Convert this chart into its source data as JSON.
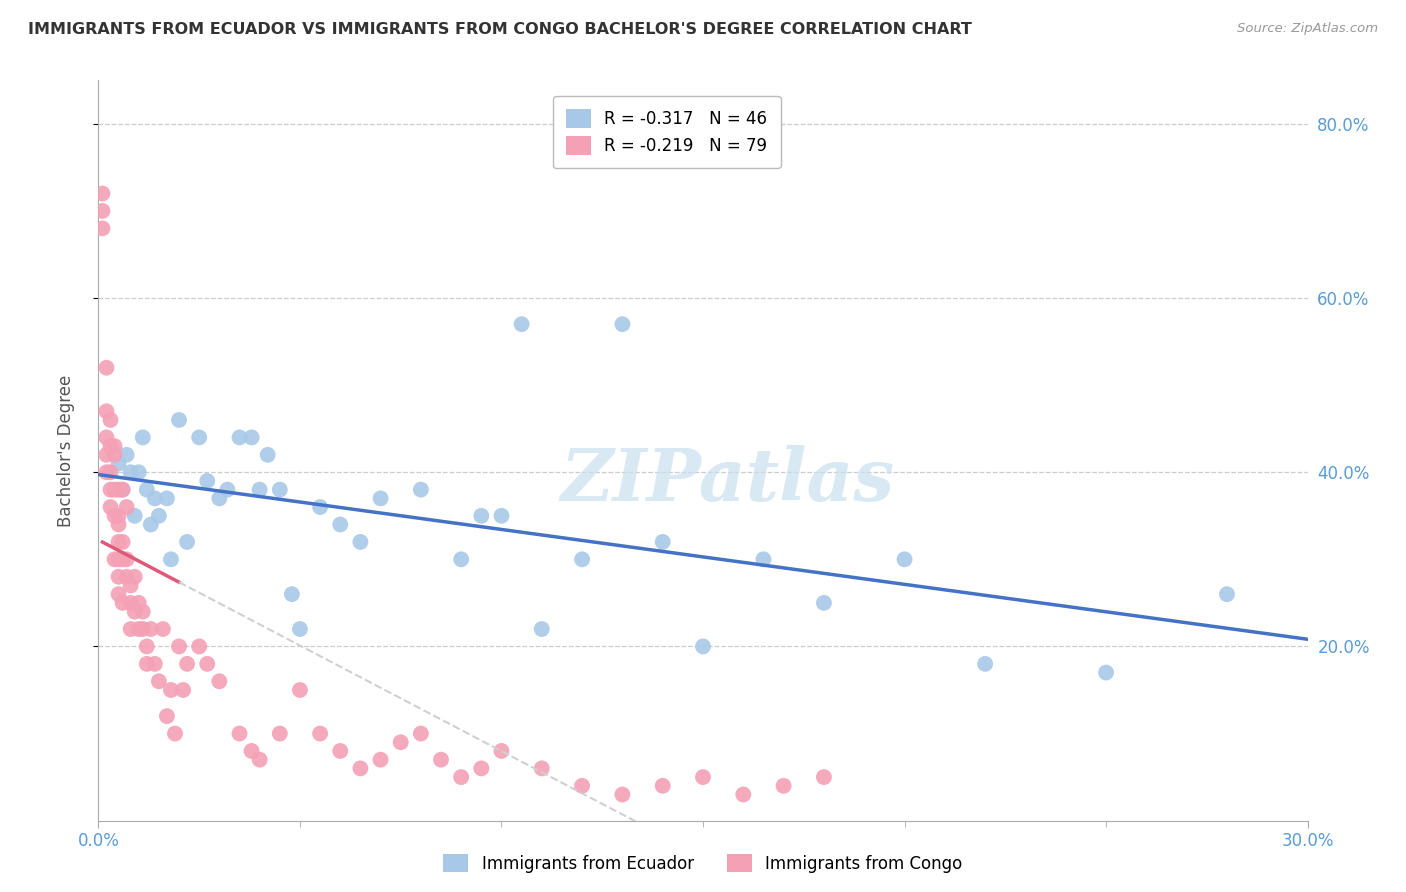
{
  "title": "IMMIGRANTS FROM ECUADOR VS IMMIGRANTS FROM CONGO BACHELOR'S DEGREE CORRELATION CHART",
  "source": "Source: ZipAtlas.com",
  "ylabel": "Bachelor's Degree",
  "color_ecuador": "#A8C8E8",
  "color_congo": "#F4A0B5",
  "color_line_ecuador": "#4472C4",
  "color_line_congo": "#E05878",
  "color_line_congo_ext": "#D0D0D0",
  "color_axis_labels": "#5B9BD5",
  "color_title": "#333333",
  "color_source": "#999999",
  "color_grid": "#CCCCCC",
  "watermark_text": "ZIPatlas",
  "watermark_color": "#C8E0F0",
  "legend_label_ecuador": "R = -0.317   N = 46",
  "legend_label_congo": "R = -0.219   N = 79",
  "bottom_legend_ecuador": "Immigrants from Ecuador",
  "bottom_legend_congo": "Immigrants from Congo",
  "xlim": [
    0.0,
    0.3
  ],
  "ylim": [
    0.0,
    0.85
  ],
  "x_ticks": [
    0.0,
    0.3
  ],
  "y_ticks": [
    0.2,
    0.4,
    0.6,
    0.8
  ],
  "ecuador_x": [
    0.005,
    0.006,
    0.007,
    0.008,
    0.009,
    0.01,
    0.011,
    0.012,
    0.013,
    0.014,
    0.015,
    0.017,
    0.018,
    0.02,
    0.022,
    0.025,
    0.027,
    0.03,
    0.032,
    0.035,
    0.038,
    0.04,
    0.042,
    0.045,
    0.048,
    0.05,
    0.055,
    0.06,
    0.065,
    0.07,
    0.08,
    0.09,
    0.095,
    0.1,
    0.105,
    0.11,
    0.12,
    0.13,
    0.14,
    0.15,
    0.165,
    0.18,
    0.2,
    0.22,
    0.25,
    0.28
  ],
  "ecuador_y": [
    0.41,
    0.38,
    0.42,
    0.4,
    0.35,
    0.4,
    0.44,
    0.38,
    0.34,
    0.37,
    0.35,
    0.37,
    0.3,
    0.46,
    0.32,
    0.44,
    0.39,
    0.37,
    0.38,
    0.44,
    0.44,
    0.38,
    0.42,
    0.38,
    0.26,
    0.22,
    0.36,
    0.34,
    0.32,
    0.37,
    0.38,
    0.3,
    0.35,
    0.35,
    0.57,
    0.22,
    0.3,
    0.57,
    0.32,
    0.2,
    0.3,
    0.25,
    0.3,
    0.18,
    0.17,
    0.26
  ],
  "congo_x": [
    0.001,
    0.001,
    0.001,
    0.002,
    0.002,
    0.002,
    0.002,
    0.002,
    0.003,
    0.003,
    0.003,
    0.003,
    0.003,
    0.004,
    0.004,
    0.004,
    0.004,
    0.004,
    0.005,
    0.005,
    0.005,
    0.005,
    0.005,
    0.005,
    0.005,
    0.006,
    0.006,
    0.006,
    0.006,
    0.007,
    0.007,
    0.007,
    0.008,
    0.008,
    0.008,
    0.009,
    0.009,
    0.01,
    0.01,
    0.011,
    0.011,
    0.012,
    0.012,
    0.013,
    0.014,
    0.015,
    0.016,
    0.017,
    0.018,
    0.019,
    0.02,
    0.021,
    0.022,
    0.025,
    0.027,
    0.03,
    0.035,
    0.038,
    0.04,
    0.045,
    0.05,
    0.055,
    0.06,
    0.065,
    0.07,
    0.075,
    0.08,
    0.085,
    0.09,
    0.095,
    0.1,
    0.11,
    0.12,
    0.13,
    0.14,
    0.15,
    0.16,
    0.17,
    0.18
  ],
  "congo_y": [
    0.68,
    0.72,
    0.7,
    0.42,
    0.44,
    0.4,
    0.47,
    0.52,
    0.4,
    0.43,
    0.46,
    0.38,
    0.36,
    0.38,
    0.42,
    0.35,
    0.3,
    0.43,
    0.32,
    0.35,
    0.38,
    0.28,
    0.26,
    0.3,
    0.34,
    0.38,
    0.32,
    0.3,
    0.25,
    0.3,
    0.28,
    0.36,
    0.27,
    0.25,
    0.22,
    0.28,
    0.24,
    0.25,
    0.22,
    0.24,
    0.22,
    0.2,
    0.18,
    0.22,
    0.18,
    0.16,
    0.22,
    0.12,
    0.15,
    0.1,
    0.2,
    0.15,
    0.18,
    0.2,
    0.18,
    0.16,
    0.1,
    0.08,
    0.07,
    0.1,
    0.15,
    0.1,
    0.08,
    0.06,
    0.07,
    0.09,
    0.1,
    0.07,
    0.05,
    0.06,
    0.08,
    0.06,
    0.04,
    0.03,
    0.04,
    0.05,
    0.03,
    0.04,
    0.05
  ]
}
